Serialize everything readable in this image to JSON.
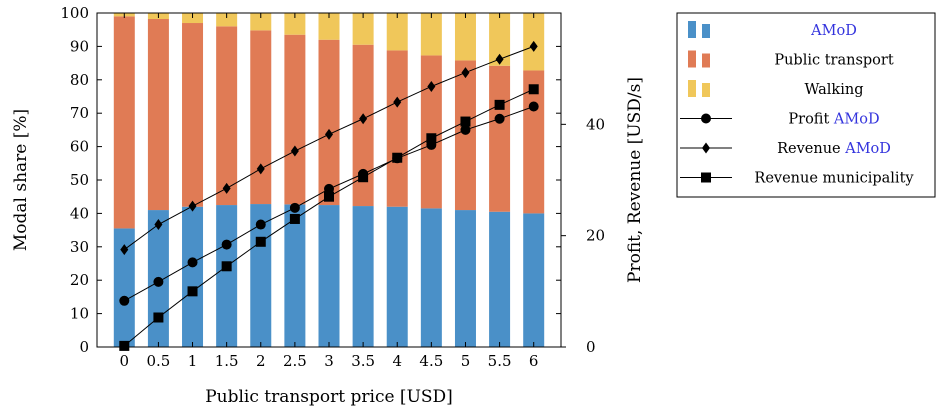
{
  "chart_data": {
    "type": "bar",
    "xlabel": "Public transport price [USD]",
    "ylabel": "Modal share [%]",
    "y2label": "Profit, Revenue [USD/s]",
    "ylim": [
      0,
      100
    ],
    "y2lim": [
      0,
      60
    ],
    "categories": [
      "0",
      "0.5",
      "1",
      "1.5",
      "2",
      "2.5",
      "3",
      "3.5",
      "4",
      "4.5",
      "5",
      "5.5",
      "6"
    ],
    "yticks": [
      "0",
      "10",
      "20",
      "30",
      "40",
      "50",
      "60",
      "70",
      "80",
      "90",
      "100"
    ],
    "y2ticks": [
      "0",
      "20",
      "40"
    ],
    "bar_series": [
      {
        "name": "AMoD",
        "color": "#4a90c8",
        "values": [
          35.5,
          41,
          42,
          42.5,
          42.8,
          42.7,
          42.5,
          42.2,
          42,
          41.5,
          41,
          40.5,
          40
        ]
      },
      {
        "name": "Public transport",
        "color": "#e07b55",
        "values": [
          63.5,
          57.2,
          55,
          53.5,
          52,
          50.8,
          49.5,
          48.3,
          46.8,
          45.8,
          44.8,
          43.7,
          42.8
        ]
      },
      {
        "name": "Walking",
        "color": "#f0c75a",
        "values": [
          1.0,
          1.8,
          3.0,
          4.0,
          5.2,
          6.5,
          8.0,
          9.5,
          11.2,
          12.7,
          14.2,
          15.8,
          17.2
        ]
      }
    ],
    "line_series": [
      {
        "name": "Profit AMoD",
        "marker": "circle",
        "values": [
          8.3,
          11.7,
          15.2,
          18.4,
          22.0,
          25.0,
          28.4,
          31.1,
          33.9,
          36.3,
          39.0,
          41.0,
          43.2
        ]
      },
      {
        "name": "Revenue AMoD",
        "marker": "diamond",
        "values": [
          17.5,
          22.0,
          25.3,
          28.5,
          32.0,
          35.2,
          38.2,
          41.0,
          44.0,
          46.8,
          49.3,
          51.7,
          54.0
        ]
      },
      {
        "name": "Revenue municipality",
        "marker": "square",
        "values": [
          0.2,
          5.3,
          10.0,
          14.5,
          18.9,
          23.0,
          27.0,
          30.5,
          34.0,
          37.5,
          40.5,
          43.5,
          46.3
        ]
      }
    ],
    "legend": {
      "position": "top-right",
      "entries": [
        {
          "text": "AMoD",
          "colored": true
        },
        {
          "text": "Public transport",
          "colored": false
        },
        {
          "text": "Walking",
          "colored": false
        },
        {
          "text_plain": "Profit ",
          "text_colored": "AMoD"
        },
        {
          "text_plain": "Revenue ",
          "text_colored": "AMoD"
        },
        {
          "text_plain": "Revenue municipality",
          "text_colored": ""
        }
      ],
      "accent_color": "#3333dd"
    }
  }
}
